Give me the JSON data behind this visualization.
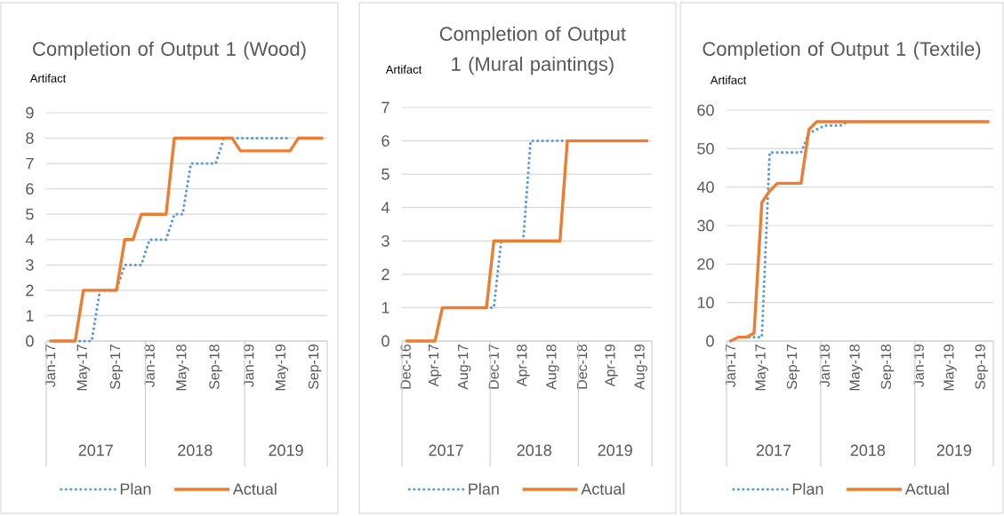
{
  "chart_data": [
    {
      "type": "line",
      "title": "Completion of Output 1 (Wood)",
      "ylabel": "Artifact",
      "categories": [
        "Jan-17",
        null,
        null,
        null,
        "May-17",
        null,
        null,
        null,
        "Sep-17",
        null,
        null,
        null,
        "Jan-18",
        null,
        null,
        null,
        "May-18",
        null,
        null,
        null,
        "Sep-18",
        null,
        null,
        null,
        "Jan-19",
        null,
        null,
        null,
        "May-19",
        null,
        null,
        null,
        "Sep-19",
        null
      ],
      "series": [
        {
          "name": "Plan",
          "color": "#5b9bd5",
          "line_style": "dotted",
          "values": [
            0,
            0,
            0,
            0,
            0,
            0,
            2,
            2,
            2,
            3,
            3,
            3,
            4,
            4,
            4,
            5,
            5,
            7,
            7,
            7,
            7,
            8,
            8,
            8,
            8,
            8,
            8,
            8,
            8,
            8,
            null,
            null,
            null,
            null
          ]
        },
        {
          "name": "Actual",
          "color": "#ed7d31",
          "line_style": "solid",
          "values": [
            0,
            0,
            0,
            0,
            2,
            2,
            2,
            2,
            2,
            4,
            4,
            5,
            5,
            5,
            5,
            8,
            8,
            8,
            8,
            8,
            8,
            8,
            8,
            7.5,
            7.5,
            7.5,
            7.5,
            7.5,
            7.5,
            7.5,
            8,
            8,
            8,
            8
          ]
        }
      ],
      "ylim": [
        0,
        9
      ],
      "yticks": [
        0,
        1,
        2,
        3,
        4,
        5,
        6,
        7,
        8,
        9
      ],
      "grid": "y",
      "legend": "bottom",
      "annotations": [
        "2017",
        "2018",
        "2019"
      ]
    },
    {
      "type": "line",
      "title": "Completion of Output 1 (Mural paintings)",
      "ylabel": "Artifact",
      "categories": [
        "Dec-16",
        null,
        null,
        null,
        "Apr-17",
        null,
        null,
        null,
        "Aug-17",
        null,
        null,
        null,
        "Dec-17",
        null,
        null,
        null,
        "Apr-18",
        null,
        null,
        null,
        "Aug-18",
        null,
        null,
        null,
        "Dec-18",
        null,
        null,
        null,
        "Apr-19",
        null,
        null,
        null,
        "Aug-19",
        null
      ],
      "series": [
        {
          "name": "Plan",
          "color": "#5b9bd5",
          "line_style": "dotted",
          "values": [
            null,
            null,
            null,
            null,
            null,
            null,
            null,
            null,
            null,
            null,
            null,
            1,
            1,
            3,
            3,
            null,
            3,
            6,
            6,
            6,
            6,
            6,
            6,
            null,
            null,
            null,
            null,
            null,
            null,
            null,
            null,
            null,
            null,
            null
          ]
        },
        {
          "name": "Actual",
          "color": "#ed7d31",
          "line_style": "solid",
          "values": [
            0,
            0,
            0,
            0,
            0,
            1,
            1,
            1,
            1,
            1,
            1,
            1,
            3,
            3,
            3,
            3,
            3,
            3,
            3,
            3,
            3,
            3,
            6,
            6,
            6,
            6,
            6,
            6,
            6,
            6,
            6,
            6,
            6,
            6
          ]
        }
      ],
      "ylim": [
        0,
        7
      ],
      "yticks": [
        0,
        1,
        2,
        3,
        4,
        5,
        6,
        7
      ],
      "grid": "y",
      "legend": "bottom",
      "annotations": [
        "2017",
        "2018",
        "2019"
      ]
    },
    {
      "type": "line",
      "title": "Completion of Output 1 (Textile)",
      "ylabel": "Artifact",
      "categories": [
        "Jan-17",
        null,
        null,
        null,
        "May-17",
        null,
        null,
        null,
        "Sep-17",
        null,
        null,
        null,
        "Jan-18",
        null,
        null,
        null,
        "May-18",
        null,
        null,
        null,
        "Sep-18",
        null,
        null,
        null,
        "Jan-19",
        null,
        null,
        null,
        "May-19",
        null,
        null,
        null,
        "Sep-19",
        null
      ],
      "series": [
        {
          "name": "Plan",
          "color": "#5b9bd5",
          "line_style": "dotted",
          "values": [
            0,
            1,
            1,
            1,
            1,
            49,
            49,
            49,
            49,
            49,
            54,
            55,
            56,
            56,
            56,
            57,
            null,
            null,
            null,
            null,
            null,
            null,
            null,
            null,
            null,
            null,
            null,
            null,
            null,
            null,
            null,
            null,
            null,
            null
          ]
        },
        {
          "name": "Actual",
          "color": "#ed7d31",
          "line_style": "solid",
          "values": [
            0,
            1,
            1,
            2,
            36,
            39,
            41,
            41,
            41,
            41,
            55,
            57,
            57,
            57,
            57,
            57,
            57,
            57,
            57,
            57,
            57,
            57,
            57,
            57,
            57,
            57,
            57,
            57,
            57,
            57,
            57,
            57,
            57,
            57
          ]
        }
      ],
      "ylim": [
        0,
        60
      ],
      "yticks": [
        0,
        10,
        20,
        30,
        40,
        50,
        60
      ],
      "grid": "y",
      "legend": "bottom",
      "annotations": [
        "2017",
        "2018",
        "2019"
      ]
    }
  ]
}
